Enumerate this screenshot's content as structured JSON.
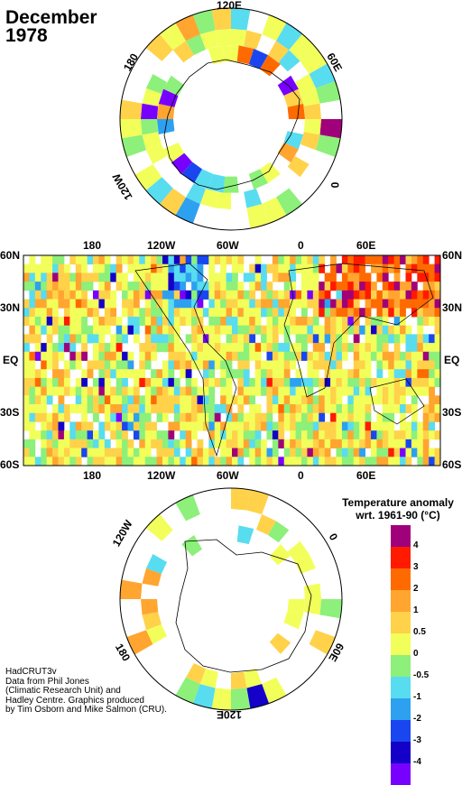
{
  "title": {
    "month": "December",
    "year": "1978"
  },
  "north_polar_map": {
    "longitude_labels": [
      "120E",
      "60E",
      "0",
      "120W",
      "180"
    ]
  },
  "world_map": {
    "top_longitude_labels": [
      "180",
      "120W",
      "60W",
      "0",
      "60E"
    ],
    "bottom_longitude_labels": [
      "180",
      "120W",
      "60W",
      "0",
      "60E"
    ],
    "left_latitude_labels": [
      "60N",
      "30N",
      "EQ",
      "30S",
      "60S"
    ],
    "right_latitude_labels": [
      "60N",
      "30N",
      "EQ",
      "30S",
      "60S"
    ]
  },
  "south_polar_map": {
    "longitude_labels": [
      "120W",
      "0",
      "180",
      "60E",
      "120E"
    ]
  },
  "legend": {
    "title_line1": "Temperature anomaly",
    "title_line2": "wrt. 1961-90  (°C)",
    "tick_labels": [
      "4",
      "3",
      "2",
      "1",
      "0.5",
      "0",
      "-0.5",
      "-1",
      "-2",
      "-3",
      "-4"
    ],
    "colors": [
      "#a0007a",
      "#ff1a00",
      "#ff6a00",
      "#ffa530",
      "#ffd24a",
      "#f2ff5a",
      "#8cf07a",
      "#58dcf0",
      "#2ea0f0",
      "#1a46f0",
      "#1400c8",
      "#7800ff"
    ]
  },
  "credits": {
    "line1": "HadCRUT3v",
    "line2": "Data from Phil Jones",
    "line3": "(Climatic Research Unit) and",
    "line4": "Hadley Centre.  Graphics produced",
    "line5": "by Tim Osborn and Mike Salmon (CRU)."
  }
}
